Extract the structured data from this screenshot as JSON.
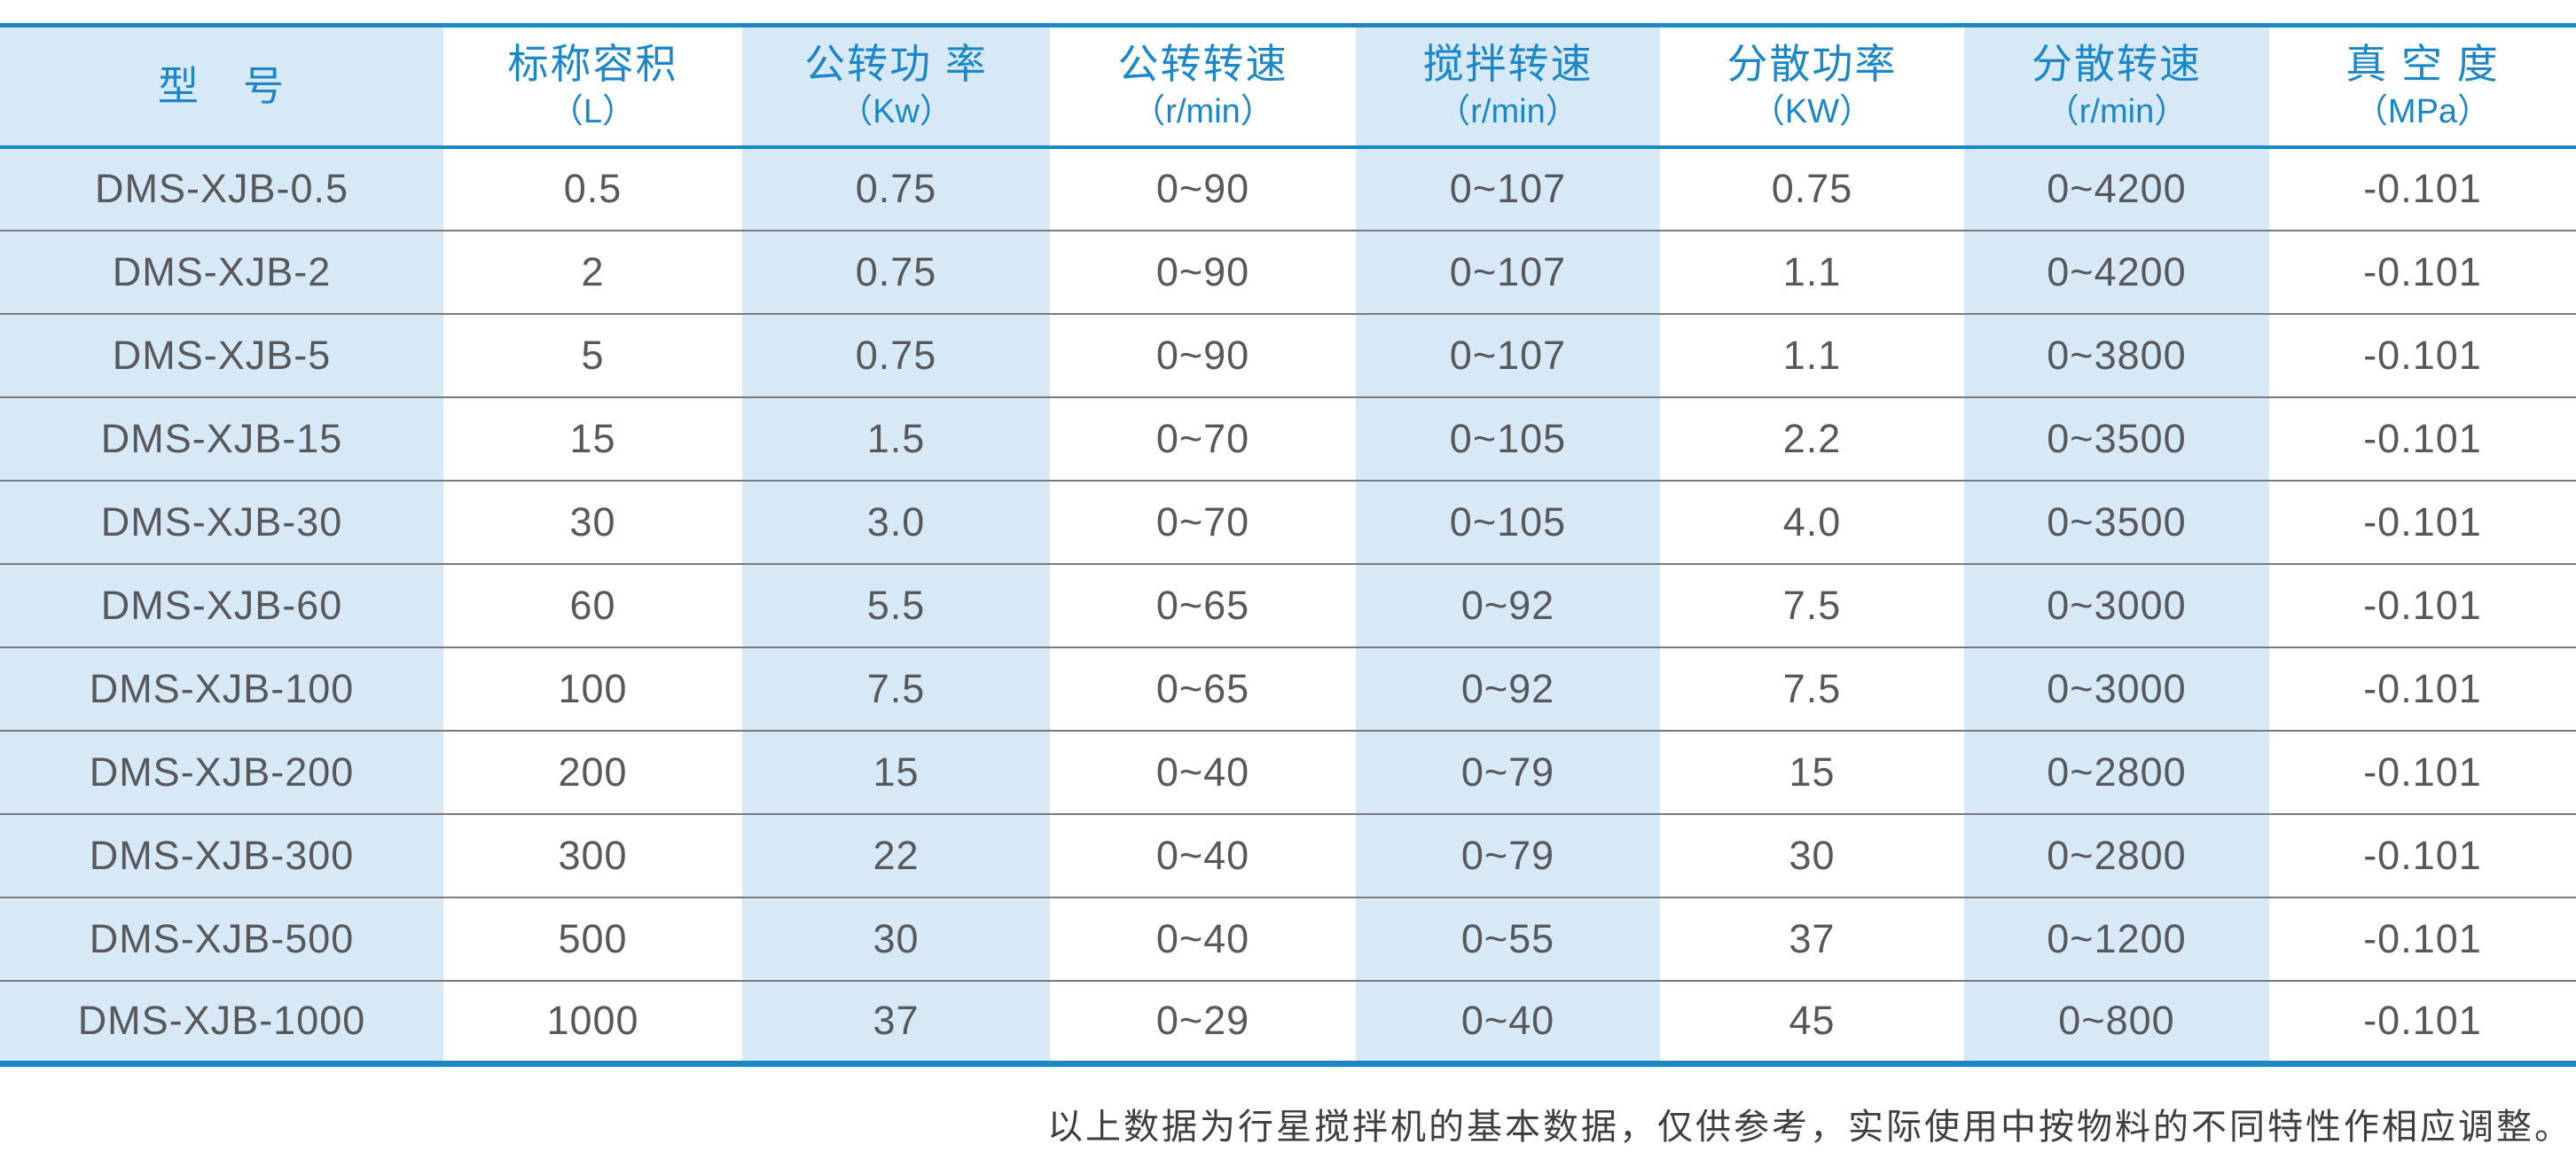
{
  "colors": {
    "accent": "#1b86c8",
    "stripe_blue": "#d7e9f7",
    "data_text": "#58585a",
    "separator_gray": "#7a7a7a",
    "footnote_text": "#3e3e3e"
  },
  "table": {
    "columns": [
      {
        "title": "型　号",
        "unit": ""
      },
      {
        "title": "标称容积",
        "unit": "（L）"
      },
      {
        "title": "公转功 率",
        "unit": "（Kw）"
      },
      {
        "title": "公转转速",
        "unit": "（r/min）"
      },
      {
        "title": "搅拌转速",
        "unit": "（r/min）"
      },
      {
        "title": "分散功率",
        "unit": "（KW）"
      },
      {
        "title": "分散转速",
        "unit": "（r/min）"
      },
      {
        "title": "真 空 度",
        "unit": "（MPa）"
      }
    ],
    "rows": [
      [
        "DMS-XJB-0.5",
        "0.5",
        "0.75",
        "0~90",
        "0~107",
        "0.75",
        "0~4200",
        "-0.101"
      ],
      [
        "DMS-XJB-2",
        "2",
        "0.75",
        "0~90",
        "0~107",
        "1.1",
        "0~4200",
        "-0.101"
      ],
      [
        "DMS-XJB-5",
        "5",
        "0.75",
        "0~90",
        "0~107",
        "1.1",
        "0~3800",
        "-0.101"
      ],
      [
        "DMS-XJB-15",
        "15",
        "1.5",
        "0~70",
        "0~105",
        "2.2",
        "0~3500",
        "-0.101"
      ],
      [
        "DMS-XJB-30",
        "30",
        "3.0",
        "0~70",
        "0~105",
        "4.0",
        "0~3500",
        "-0.101"
      ],
      [
        "DMS-XJB-60",
        "60",
        "5.5",
        "0~65",
        "0~92",
        "7.5",
        "0~3000",
        "-0.101"
      ],
      [
        "DMS-XJB-100",
        "100",
        "7.5",
        "0~65",
        "0~92",
        "7.5",
        "0~3000",
        "-0.101"
      ],
      [
        "DMS-XJB-200",
        "200",
        "15",
        "0~40",
        "0~79",
        "15",
        "0~2800",
        "-0.101"
      ],
      [
        "DMS-XJB-300",
        "300",
        "22",
        "0~40",
        "0~79",
        "30",
        "0~2800",
        "-0.101"
      ],
      [
        "DMS-XJB-500",
        "500",
        "30",
        "0~40",
        "0~55",
        "37",
        "0~1200",
        "-0.101"
      ],
      [
        "DMS-XJB-1000",
        "1000",
        "37",
        "0~29",
        "0~40",
        "45",
        "0~800",
        "-0.101"
      ]
    ]
  },
  "footer": {
    "note": "以上数据为行星搅拌机的基本数据，仅供参考，实际使用中按物料的不同特性作相应调整。"
  }
}
